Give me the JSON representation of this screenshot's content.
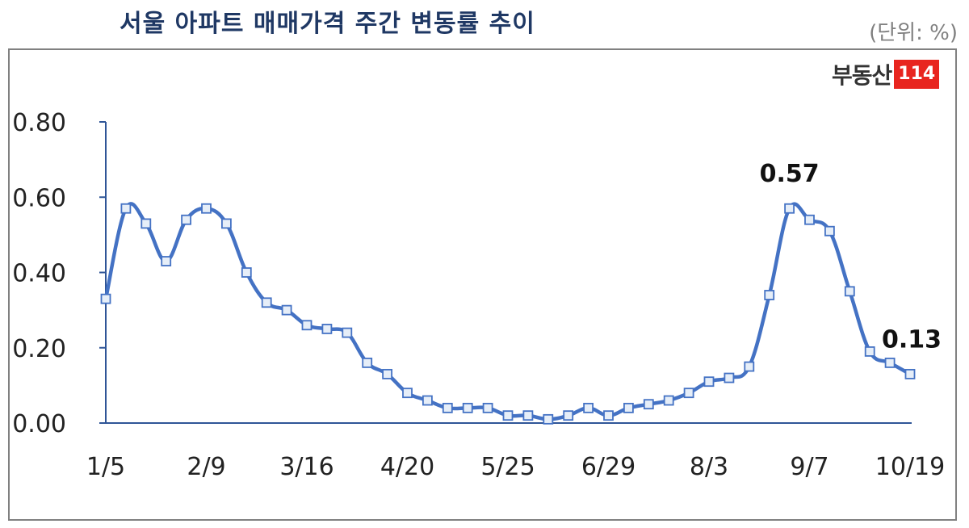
{
  "header": {
    "title": "서울 아파트 매매가격 주간 변동률 추이",
    "unit": "(단위: %)"
  },
  "logo": {
    "text": "부동산",
    "badge": "114",
    "badge_color": "#e8251f"
  },
  "colors": {
    "series": "#4472c4",
    "marker_fill": "#e6eef8",
    "axis": "#2f5597"
  },
  "chart_data": {
    "type": "line",
    "title": "서울 아파트 매매가격 주간 변동률 추이",
    "xlabel": "",
    "ylabel": "",
    "ylim": [
      0,
      0.8
    ],
    "yticks": [
      "0.00",
      "0.20",
      "0.40",
      "0.60",
      "0.80"
    ],
    "x_tick_labels": [
      "1/5",
      "2/9",
      "3/16",
      "4/20",
      "5/25",
      "6/29",
      "8/3",
      "9/7",
      "10/19"
    ],
    "x_tick_indices": [
      0,
      5,
      10,
      15,
      20,
      25,
      30,
      35,
      40
    ],
    "grid": false,
    "legend": "none",
    "series": [
      {
        "values": [
          0.33,
          0.57,
          0.53,
          0.43,
          0.54,
          0.57,
          0.53,
          0.4,
          0.32,
          0.3,
          0.26,
          0.25,
          0.24,
          0.16,
          0.13,
          0.08,
          0.06,
          0.04,
          0.04,
          0.04,
          0.02,
          0.02,
          0.01,
          0.02,
          0.04,
          0.02,
          0.04,
          0.05,
          0.06,
          0.08,
          0.11,
          0.12,
          0.15,
          0.34,
          0.57,
          0.54,
          0.51,
          0.35,
          0.19,
          0.16,
          0.13
        ]
      }
    ],
    "annotations": [
      {
        "index": 34,
        "text": "0.57"
      },
      {
        "index": 40,
        "text": "0.13"
      }
    ]
  }
}
